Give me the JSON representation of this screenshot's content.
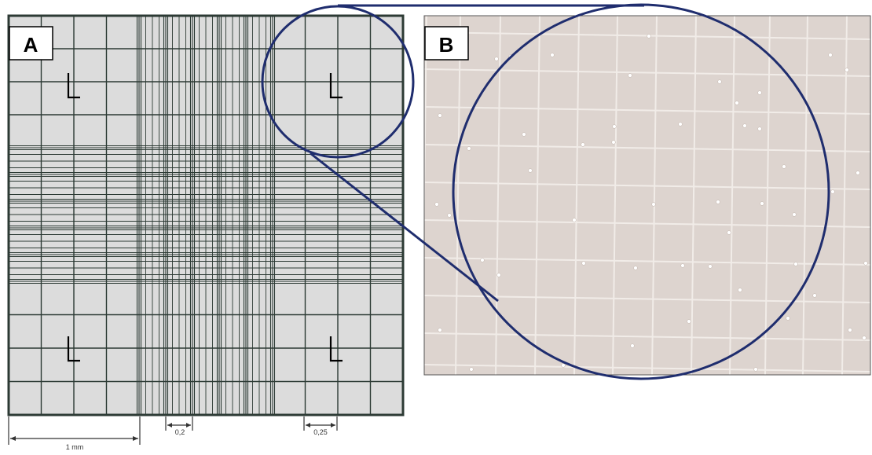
{
  "panels": {
    "a": {
      "label": "A"
    },
    "b": {
      "label": "B"
    }
  },
  "scale": {
    "width_label": "1 mm",
    "small_square_label": "0,2",
    "corner_square_label": "0,25"
  },
  "colors": {
    "grid_background": "#dcdcdc",
    "grid_line": "#2c3a34",
    "zoom_circle": "#1f2d6e",
    "micrograph_background": "#ddd4cf",
    "micrograph_line": "#f1ece8",
    "label_box_border": "#000000"
  }
}
